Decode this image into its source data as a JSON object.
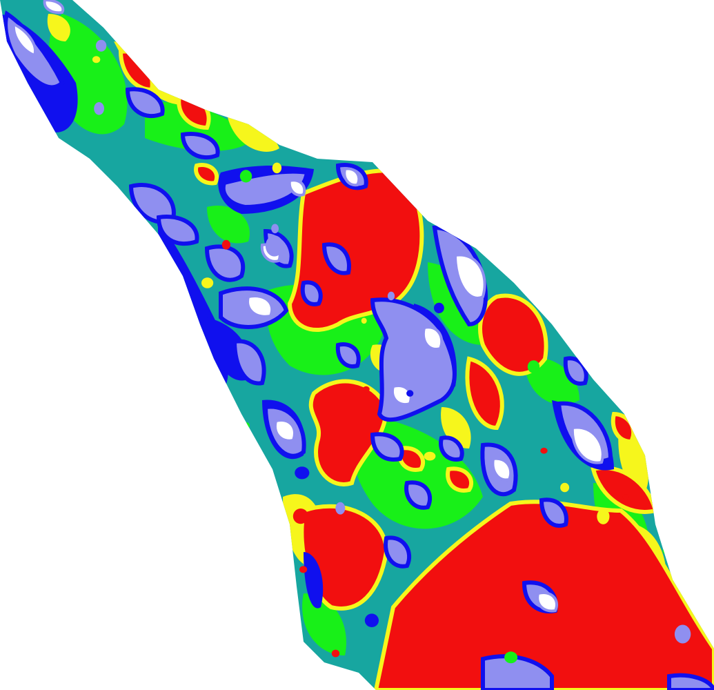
{
  "map": {
    "legend": [],
    "palette": {
      "white": "#ffffff",
      "lavender": "#8f8ff0",
      "blue": "#1010ee",
      "teal": "#17a6a0",
      "green": "#18f018",
      "yellow": "#f6f61c",
      "red": "#f20f0f"
    }
  }
}
